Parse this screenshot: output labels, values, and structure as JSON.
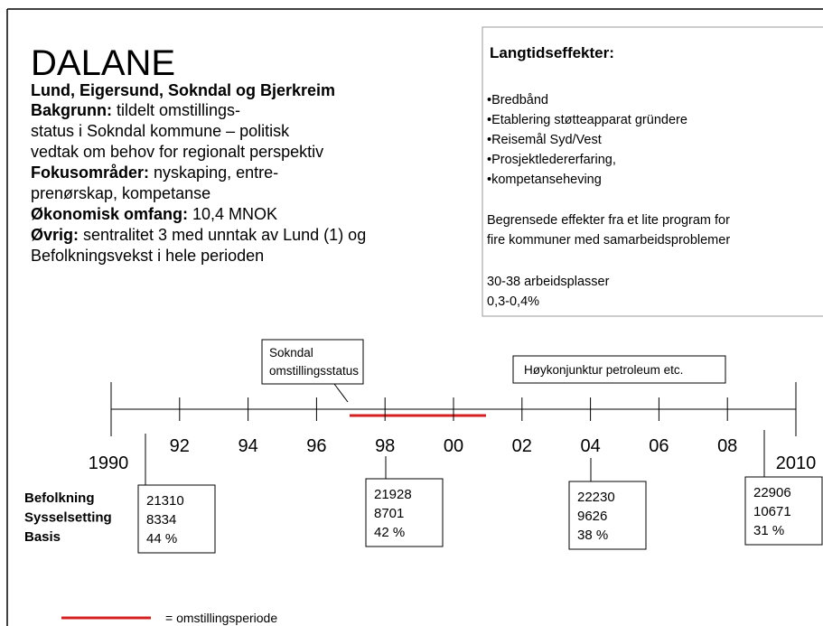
{
  "title": "DALANE",
  "subtitle": "Lund, Eigersund, Sokndal og Bjerkreim",
  "sections": [
    {
      "label": "Bakgrunn:",
      "lines": [
        "tildelt omstillings-",
        "status i Sokndal kommune – politisk",
        "vedtak om behov for regionalt perspektiv"
      ]
    },
    {
      "label": "Fokusområder:",
      "lines": [
        "nyskaping, entre-",
        "prenørskap, kompetanse"
      ]
    },
    {
      "label": "Økonomisk omfang:",
      "lines": [
        "10,4 MNOK"
      ]
    },
    {
      "label": "Øvrig:",
      "lines": [
        "sentralitet 3 med unntak av Lund (1) og",
        "Befolkningsvekst i hele perioden"
      ]
    }
  ],
  "effects": {
    "heading": "Langtidseffekter:",
    "bullets": [
      "•Bredbånd",
      "•Etablering støtteapparat gründere",
      "•Reisemål Syd/Vest",
      "•Prosjektledererfaring,",
      "•kompetanseheving"
    ],
    "notes": [
      [
        "Begrensede effekter fra et lite program for",
        "fire kommuner med samarbeidsproblemer"
      ],
      [
        "30-38 arbeidsplasser",
        "0,3-0,4%"
      ]
    ]
  },
  "timeline": {
    "labels": [
      "1990",
      "92",
      "94",
      "96",
      "98",
      "00",
      "02",
      "04",
      "06",
      "08",
      "2010"
    ],
    "callouts": [
      [
        "Sokndal",
        "omstillingsstatus"
      ],
      [
        "Høykonjunktur petroleum etc."
      ]
    ]
  },
  "data_boxes": {
    "row_labels": [
      "Befolkning",
      "Sysselsetting",
      "Basis"
    ],
    "boxes": [
      [
        "21310",
        "8334",
        "44 %"
      ],
      [
        "21928",
        "8701",
        "42 %"
      ],
      [
        "22230",
        "9626",
        "38 %"
      ],
      [
        "22906",
        "10671",
        "31 %"
      ]
    ]
  },
  "legend": "= omstillingsperiode"
}
